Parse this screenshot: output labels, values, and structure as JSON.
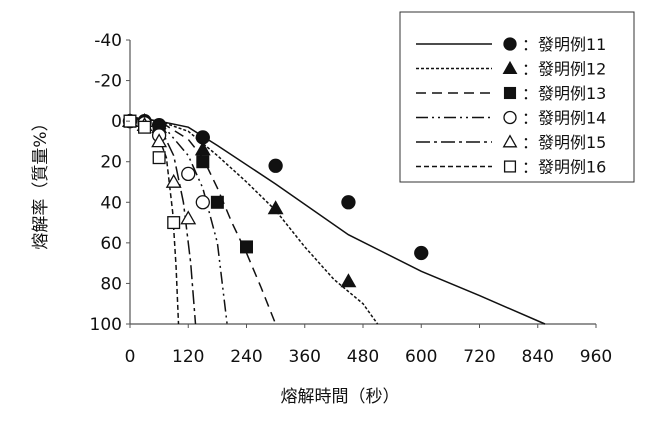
{
  "chart_data": {
    "type": "scatter",
    "xlabel": "熔解時間（秒）",
    "ylabel": "熔解率（質量%）",
    "xlim": [
      0,
      960
    ],
    "ylim": [
      -40,
      100
    ],
    "y_inverted": true,
    "grid": false,
    "legend_position": "top-right",
    "xticks": [
      0,
      120,
      240,
      360,
      480,
      600,
      720,
      840,
      960
    ],
    "yticks": [
      -40,
      -20,
      0,
      20,
      40,
      60,
      80,
      100
    ],
    "series": [
      {
        "name": "：發明例11",
        "marker": "filled-circle",
        "line": "solid",
        "points": [
          [
            0,
            0
          ],
          [
            30,
            0
          ],
          [
            60,
            2
          ],
          [
            150,
            8
          ],
          [
            300,
            22
          ],
          [
            450,
            40
          ],
          [
            600,
            65
          ]
        ],
        "curve": [
          [
            0,
            -2
          ],
          [
            60,
            0
          ],
          [
            120,
            3
          ],
          [
            180,
            12
          ],
          [
            300,
            31
          ],
          [
            450,
            56
          ],
          [
            600,
            74
          ],
          [
            720,
            86
          ],
          [
            855,
            100
          ]
        ]
      },
      {
        "name": "：發明例12",
        "marker": "filled-triangle",
        "line": "dotted",
        "points": [
          [
            0,
            0
          ],
          [
            30,
            0
          ],
          [
            60,
            3
          ],
          [
            150,
            14
          ],
          [
            300,
            43
          ],
          [
            450,
            79
          ]
        ],
        "curve": [
          [
            0,
            -2
          ],
          [
            60,
            0
          ],
          [
            120,
            5
          ],
          [
            180,
            17
          ],
          [
            240,
            30
          ],
          [
            300,
            44
          ],
          [
            360,
            62
          ],
          [
            420,
            78
          ],
          [
            480,
            90
          ],
          [
            510,
            100
          ]
        ]
      },
      {
        "name": "：發明例13",
        "marker": "filled-square",
        "line": "dashed",
        "points": [
          [
            0,
            0
          ],
          [
            30,
            2
          ],
          [
            60,
            5
          ],
          [
            150,
            20
          ],
          [
            180,
            40
          ],
          [
            240,
            62
          ]
        ],
        "curve": [
          [
            0,
            -2
          ],
          [
            60,
            0
          ],
          [
            120,
            9
          ],
          [
            150,
            18
          ],
          [
            180,
            33
          ],
          [
            210,
            50
          ],
          [
            240,
            65
          ],
          [
            270,
            82
          ],
          [
            300,
            100
          ]
        ]
      },
      {
        "name": "：發明例14",
        "marker": "open-circle",
        "line": "dash-dot-dot",
        "points": [
          [
            0,
            0
          ],
          [
            30,
            1
          ],
          [
            60,
            7
          ],
          [
            120,
            26
          ],
          [
            150,
            40
          ]
        ],
        "curve": [
          [
            0,
            -2
          ],
          [
            60,
            0
          ],
          [
            120,
            17
          ],
          [
            150,
            33
          ],
          [
            180,
            60
          ],
          [
            200,
            100
          ]
        ]
      },
      {
        "name": "：發明例15",
        "marker": "open-triangle",
        "line": "dash-dot",
        "points": [
          [
            0,
            0
          ],
          [
            30,
            2
          ],
          [
            60,
            10
          ],
          [
            90,
            30
          ],
          [
            120,
            48
          ]
        ],
        "curve": [
          [
            0,
            -2
          ],
          [
            60,
            2
          ],
          [
            90,
            17
          ],
          [
            110,
            40
          ],
          [
            125,
            70
          ],
          [
            135,
            100
          ]
        ]
      },
      {
        "name": "：發明例16",
        "marker": "open-square",
        "line": "short-dash",
        "points": [
          [
            0,
            0
          ],
          [
            30,
            3
          ],
          [
            60,
            18
          ],
          [
            90,
            50
          ]
        ],
        "curve": [
          [
            0,
            -2
          ],
          [
            50,
            2
          ],
          [
            75,
            18
          ],
          [
            88,
            45
          ],
          [
            95,
            72
          ],
          [
            100,
            100
          ]
        ]
      }
    ]
  }
}
